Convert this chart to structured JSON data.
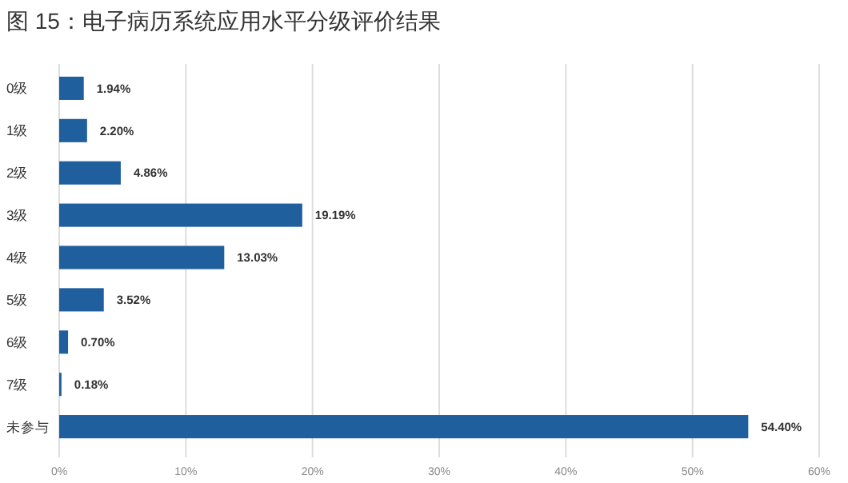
{
  "chart_data": {
    "type": "bar",
    "orientation": "horizontal",
    "title": "图 15：电子病历系统应用水平分级评价结果",
    "categories": [
      "0级",
      "1级",
      "2级",
      "3级",
      "4级",
      "5级",
      "6级",
      "7级",
      "未参与"
    ],
    "values": [
      1.94,
      2.2,
      4.86,
      19.19,
      13.03,
      3.52,
      0.7,
      0.18,
      54.4
    ],
    "value_labels": [
      "1.94%",
      "2.20%",
      "4.86%",
      "19.19%",
      "13.03%",
      "3.52%",
      "0.70%",
      "0.18%",
      "54.40%"
    ],
    "color": "#1f5f9e",
    "xlim": [
      0,
      60
    ],
    "xticks": [
      {
        "value": 0,
        "label": "0%"
      },
      {
        "value": 10,
        "label": "10%"
      },
      {
        "value": 20,
        "label": "20%"
      },
      {
        "value": 30,
        "label": "30%"
      },
      {
        "value": 40,
        "label": "40%"
      },
      {
        "value": 50,
        "label": "50%"
      },
      {
        "value": 60,
        "label": "60%"
      }
    ],
    "grid": "x"
  }
}
